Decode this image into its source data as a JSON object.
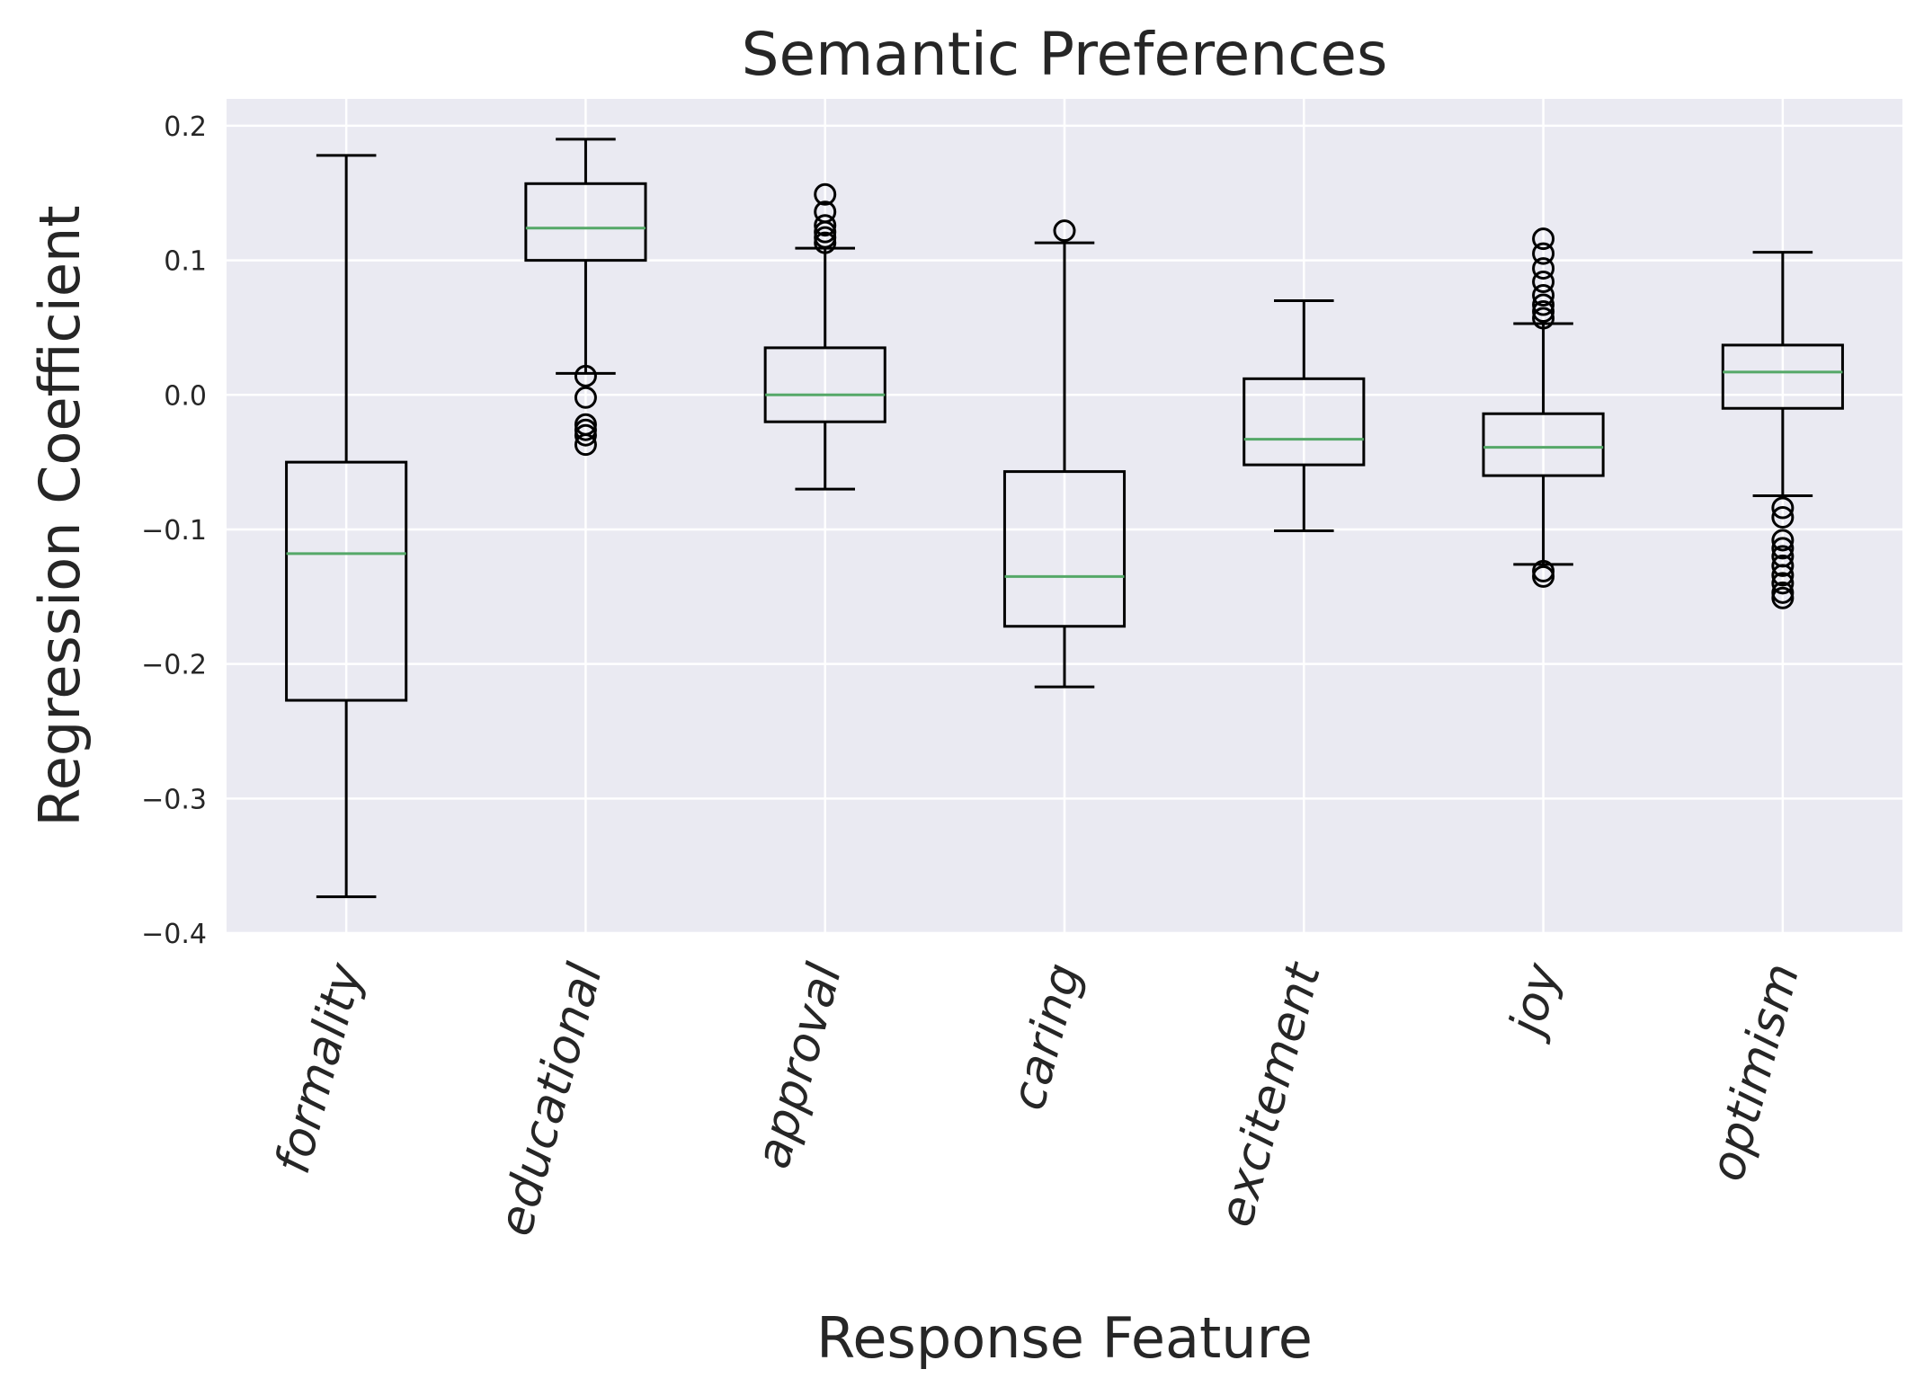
{
  "chart_data": {
    "type": "box",
    "title": "Semantic Preferences",
    "xlabel": "Response Feature",
    "ylabel": "Regression Coefficient",
    "ylim": [
      -0.4,
      0.22
    ],
    "yticks": [
      -0.4,
      -0.3,
      -0.2,
      -0.1,
      0.0,
      0.1,
      0.2
    ],
    "ytick_labels": [
      "−0.4",
      "−0.3",
      "−0.2",
      "−0.1",
      "0.0",
      "0.1",
      "0.2"
    ],
    "grid": true,
    "background": "#eaeaf2",
    "median_color": "#55a868",
    "box_color": "#000000",
    "categories": [
      "formality",
      "educational",
      "approval",
      "caring",
      "excitement",
      "joy",
      "optimism"
    ],
    "boxes": [
      {
        "label": "formality",
        "whisker_low": -0.373,
        "q1": -0.227,
        "median": -0.118,
        "q3": -0.05,
        "whisker_high": 0.178,
        "outliers": []
      },
      {
        "label": "educational",
        "whisker_low": 0.016,
        "q1": 0.1,
        "median": 0.124,
        "q3": 0.157,
        "whisker_high": 0.19,
        "outliers": [
          0.014,
          -0.002,
          -0.022,
          -0.026,
          -0.03,
          -0.037
        ]
      },
      {
        "label": "approval",
        "whisker_low": -0.07,
        "q1": -0.02,
        "median": 0.0,
        "q3": 0.035,
        "whisker_high": 0.109,
        "outliers": [
          0.149,
          0.136,
          0.126,
          0.121,
          0.117,
          0.113
        ]
      },
      {
        "label": "caring",
        "whisker_low": -0.217,
        "q1": -0.172,
        "median": -0.135,
        "q3": -0.057,
        "whisker_high": 0.113,
        "outliers": [
          0.122
        ]
      },
      {
        "label": "excitement",
        "whisker_low": -0.101,
        "q1": -0.052,
        "median": -0.033,
        "q3": 0.012,
        "whisker_high": 0.07,
        "outliers": []
      },
      {
        "label": "joy",
        "whisker_low": -0.126,
        "q1": -0.06,
        "median": -0.039,
        "q3": -0.014,
        "whisker_high": 0.053,
        "outliers": [
          0.116,
          0.105,
          0.094,
          0.084,
          0.074,
          0.067,
          0.062,
          0.057,
          -0.131,
          -0.135
        ]
      },
      {
        "label": "optimism",
        "whisker_low": -0.075,
        "q1": -0.01,
        "median": 0.017,
        "q3": 0.037,
        "whisker_high": 0.106,
        "outliers": [
          -0.084,
          -0.091,
          -0.108,
          -0.114,
          -0.12,
          -0.127,
          -0.134,
          -0.14,
          -0.147,
          -0.151
        ]
      }
    ]
  }
}
